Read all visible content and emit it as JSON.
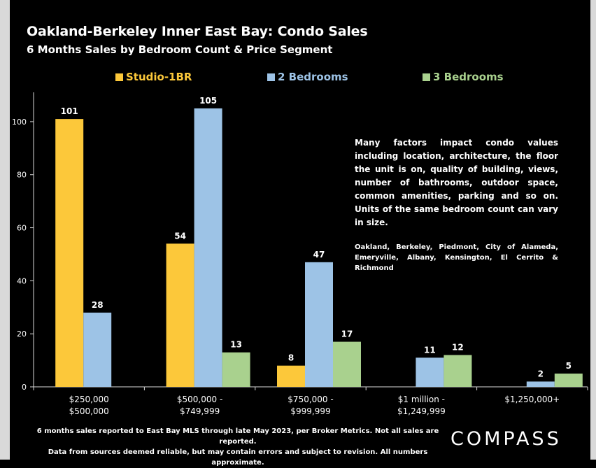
{
  "chart_data": {
    "type": "bar",
    "title": "Oakland-Berkeley Inner East Bay: Condo  Sales",
    "subtitle": "6 Months Sales by Bedroom Count & Price Segment",
    "categories": [
      [
        "$250,000",
        "$500,000"
      ],
      [
        "$500,000 -",
        "$749,999"
      ],
      [
        "$750,000 -",
        "$999,999"
      ],
      [
        "$1 million -",
        "$1,249,999"
      ],
      [
        "$1,250,000+"
      ]
    ],
    "series": [
      {
        "name": "Studio-1BR",
        "color": "#fcc83a",
        "values": [
          101,
          54,
          8,
          null,
          null
        ]
      },
      {
        "name": "2 Bedrooms",
        "color": "#9dc3e6",
        "values": [
          28,
          105,
          47,
          11,
          2
        ]
      },
      {
        "name": "3 Bedrooms",
        "color": "#a9d18e",
        "values": [
          null,
          13,
          17,
          12,
          5
        ]
      }
    ],
    "ylim": [
      0,
      110
    ],
    "yticks": [
      0,
      20,
      40,
      60,
      80,
      100
    ],
    "legend_position": "top",
    "grid": false
  },
  "note": "Many factors impact condo values including location, architecture, the floor the unit is on, quality of building, views, number of bathrooms, outdoor space, common amenities, parking and so on. Units of the same bedroom count can vary in size.",
  "areas_note": "Oakland, Berkeley, Piedmont, City of Alameda, Emeryville, Albany, Kensington, El Cerrito & Richmond",
  "footer": {
    "line1": "6 months sales reported to East Bay MLS through late May 2023, per Broker Metrics. Not all sales are reported.",
    "line2": "Data from sources deemed reliable, but may contain errors and subject to revision. All numbers approximate."
  },
  "logo": "COMPASS"
}
